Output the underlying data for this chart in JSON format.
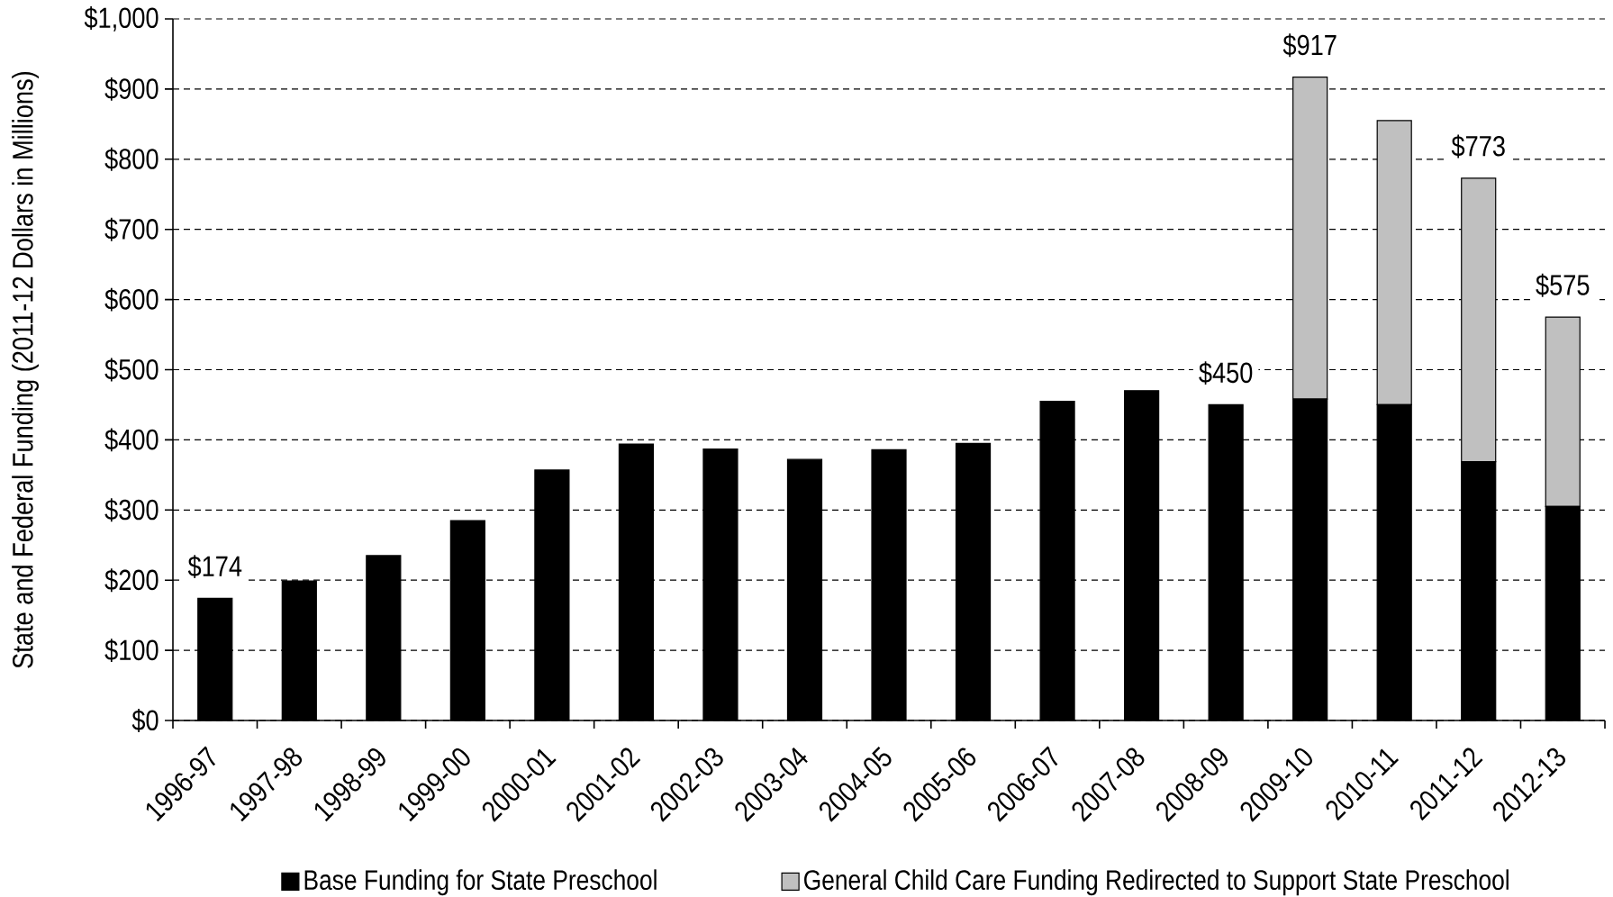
{
  "chart_data": {
    "type": "bar",
    "stacked": true,
    "categories": [
      "1996-97",
      "1997-98",
      "1998-99",
      "1999-00",
      "2000-01",
      "2001-02",
      "2002-03",
      "2003-04",
      "2004-05",
      "2005-06",
      "2006-07",
      "2007-08",
      "2008-09",
      "2009-10",
      "2010-11",
      "2011-12",
      "2012-13"
    ],
    "series": [
      {
        "name": "Base Funding for State Preschool",
        "color": "#000000",
        "values": [
          174,
          199,
          235,
          285,
          357,
          394,
          387,
          372,
          386,
          395,
          455,
          470,
          450,
          458,
          450,
          369,
          305
        ]
      },
      {
        "name": "General Child Care Funding Redirected to Support State Preschool",
        "color": "#c0c0c0",
        "values": [
          null,
          null,
          null,
          null,
          null,
          null,
          null,
          null,
          null,
          null,
          null,
          null,
          null,
          459,
          405,
          404,
          270
        ]
      }
    ],
    "totals": [
      "$174",
      null,
      null,
      null,
      null,
      null,
      null,
      null,
      null,
      null,
      null,
      null,
      "$450",
      "$917",
      null,
      "$773",
      "$575"
    ],
    "ylabel": "State and Federal Funding (2011-12 Dollars in Millions)",
    "ylim": [
      0,
      1000
    ],
    "yticks": [
      {
        "value": 0,
        "label": "$0"
      },
      {
        "value": 100,
        "label": "$100"
      },
      {
        "value": 200,
        "label": "$200"
      },
      {
        "value": 300,
        "label": "$300"
      },
      {
        "value": 400,
        "label": "$400"
      },
      {
        "value": 500,
        "label": "$500"
      },
      {
        "value": 600,
        "label": "$600"
      },
      {
        "value": 700,
        "label": "$700"
      },
      {
        "value": 800,
        "label": "$800"
      },
      {
        "value": 900,
        "label": "$900"
      },
      {
        "value": 1000,
        "label": "$1,000"
      }
    ],
    "grid": "y",
    "legend": "bottom"
  }
}
